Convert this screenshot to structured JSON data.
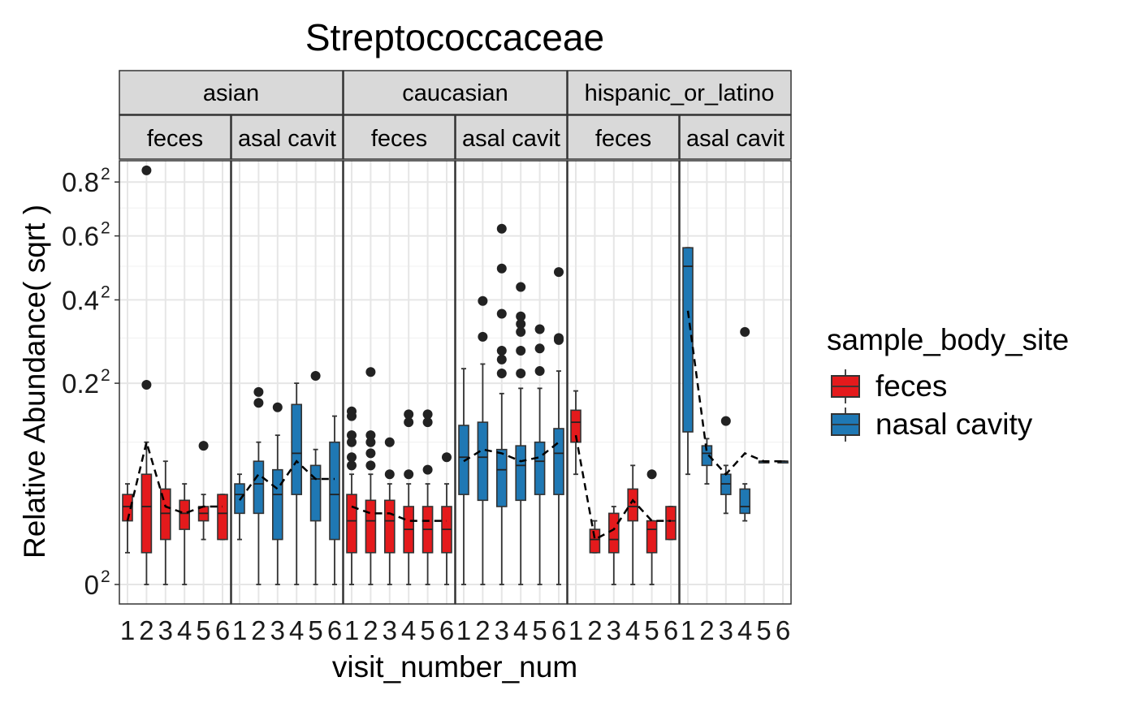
{
  "chart_data": {
    "type": "boxplot",
    "title": "Streptococcaceae",
    "xlabel": "visit_number_num",
    "ylabel": "Relative Abundance( sqrt )",
    "y_scale": "sqrt",
    "ylim": [
      0,
      0.88
    ],
    "y_ticks": [
      {
        "value": 0,
        "base": "0",
        "exp": "2"
      },
      {
        "value": 0.2,
        "base": "0.2",
        "exp": "2"
      },
      {
        "value": 0.4,
        "base": "0.4",
        "exp": "2"
      },
      {
        "value": 0.6,
        "base": "0.6",
        "exp": "2"
      },
      {
        "value": 0.8,
        "base": "0.8",
        "exp": "2"
      }
    ],
    "x_ticks": [
      "1",
      "2",
      "3",
      "4",
      "5",
      "6"
    ],
    "facet_rows_top": [
      "asian",
      "caucasian",
      "hispanic_or_latino"
    ],
    "facet_rows_sub": [
      "feces",
      "asal cavit"
    ],
    "legend": {
      "title": "sample_body_site",
      "position": "right",
      "entries": [
        {
          "label": "feces",
          "color": "#e41a1c"
        },
        {
          "label": "nasal cavity",
          "color": "#1f78b4"
        }
      ]
    },
    "grid": true,
    "panels": [
      {
        "ethnicity": "asian",
        "site": "feces",
        "color": "#e41a1c",
        "boxes": [
          {
            "x": 1,
            "q1": 0.02,
            "median": 0.03,
            "q3": 0.04,
            "lo": 0.005,
            "hi": 0.05,
            "outliers": []
          },
          {
            "x": 2,
            "q1": 0.005,
            "median": 0.03,
            "q3": 0.06,
            "lo": 0.0,
            "hi": 0.1,
            "outliers": [
              0.197,
              0.847
            ]
          },
          {
            "x": 3,
            "q1": 0.01,
            "median": 0.025,
            "q3": 0.045,
            "lo": 0.0,
            "hi": 0.075,
            "outliers": []
          },
          {
            "x": 4,
            "q1": 0.015,
            "median": 0.025,
            "q3": 0.035,
            "lo": 0.0,
            "hi": 0.05,
            "outliers": []
          },
          {
            "x": 5,
            "q1": 0.02,
            "median": 0.025,
            "q3": 0.03,
            "lo": 0.01,
            "hi": 0.04,
            "outliers": [
              0.095
            ]
          },
          {
            "x": 6,
            "q1": 0.01,
            "median": 0.025,
            "q3": 0.04,
            "lo": 0.01,
            "hi": 0.04,
            "outliers": []
          }
        ],
        "trend": [
          0.02,
          0.1,
          0.03,
          0.025,
          0.03,
          0.03
        ]
      },
      {
        "ethnicity": "asian",
        "site": "nasal cavity",
        "color": "#1f78b4",
        "boxes": [
          {
            "x": 1,
            "q1": 0.025,
            "median": 0.04,
            "q3": 0.05,
            "lo": 0.01,
            "hi": 0.06,
            "outliers": []
          },
          {
            "x": 2,
            "q1": 0.025,
            "median": 0.05,
            "q3": 0.075,
            "lo": 0.0,
            "hi": 0.1,
            "outliers": [
              0.163,
              0.183
            ]
          },
          {
            "x": 3,
            "q1": 0.01,
            "median": 0.04,
            "q3": 0.065,
            "lo": 0.0,
            "hi": 0.11,
            "outliers": [
              0.155
            ]
          },
          {
            "x": 4,
            "q1": 0.04,
            "median": 0.085,
            "q3": 0.16,
            "lo": 0.0,
            "hi": 0.2,
            "outliers": []
          },
          {
            "x": 5,
            "q1": 0.02,
            "median": 0.055,
            "q3": 0.07,
            "lo": 0.0,
            "hi": 0.09,
            "outliers": [
              0.215
            ]
          },
          {
            "x": 6,
            "q1": 0.01,
            "median": 0.04,
            "q3": 0.1,
            "lo": 0.0,
            "hi": 0.14,
            "outliers": []
          }
        ],
        "trend": [
          0.035,
          0.06,
          0.045,
          0.075,
          0.055,
          0.055
        ]
      },
      {
        "ethnicity": "caucasian",
        "site": "feces",
        "color": "#e41a1c",
        "boxes": [
          {
            "x": 1,
            "q1": 0.005,
            "median": 0.02,
            "q3": 0.04,
            "lo": 0.0,
            "hi": 0.06,
            "outliers": [
              0.07,
              0.08,
              0.1,
              0.11,
              0.14,
              0.148
            ]
          },
          {
            "x": 2,
            "q1": 0.005,
            "median": 0.02,
            "q3": 0.035,
            "lo": 0.0,
            "hi": 0.06,
            "outliers": [
              0.07,
              0.085,
              0.1,
              0.11,
              0.223
            ]
          },
          {
            "x": 3,
            "q1": 0.005,
            "median": 0.02,
            "q3": 0.035,
            "lo": 0.0,
            "hi": 0.05,
            "outliers": [
              0.06,
              0.1
            ]
          },
          {
            "x": 4,
            "q1": 0.005,
            "median": 0.015,
            "q3": 0.03,
            "lo": 0.0,
            "hi": 0.05,
            "outliers": [
              0.06,
              0.13,
              0.143
            ]
          },
          {
            "x": 5,
            "q1": 0.005,
            "median": 0.015,
            "q3": 0.03,
            "lo": 0.0,
            "hi": 0.05,
            "outliers": [
              0.065,
              0.13,
              0.143
            ]
          },
          {
            "x": 6,
            "q1": 0.005,
            "median": 0.015,
            "q3": 0.03,
            "lo": 0.0,
            "hi": 0.05,
            "outliers": [
              0.08
            ]
          }
        ],
        "trend": [
          0.03,
          0.025,
          0.025,
          0.02,
          0.02,
          0.02
        ]
      },
      {
        "ethnicity": "caucasian",
        "site": "nasal cavity",
        "color": "#1f78b4",
        "boxes": [
          {
            "x": 1,
            "q1": 0.04,
            "median": 0.08,
            "q3": 0.125,
            "lo": 0.0,
            "hi": 0.23,
            "outliers": []
          },
          {
            "x": 2,
            "q1": 0.035,
            "median": 0.08,
            "q3": 0.13,
            "lo": 0.0,
            "hi": 0.24,
            "outliers": [
              0.303,
              0.397
            ]
          },
          {
            "x": 3,
            "q1": 0.03,
            "median": 0.065,
            "q3": 0.09,
            "lo": 0.0,
            "hi": 0.18,
            "outliers": [
              0.22,
              0.25,
              0.27,
              0.362,
              0.493,
              0.625
            ]
          },
          {
            "x": 4,
            "q1": 0.035,
            "median": 0.07,
            "q3": 0.095,
            "lo": 0.0,
            "hi": 0.19,
            "outliers": [
              0.22,
              0.27,
              0.315,
              0.335,
              0.355,
              0.437
            ]
          },
          {
            "x": 5,
            "q1": 0.04,
            "median": 0.075,
            "q3": 0.1,
            "lo": 0.0,
            "hi": 0.19,
            "outliers": [
              0.225,
              0.275,
              0.322
            ]
          },
          {
            "x": 6,
            "q1": 0.04,
            "median": 0.085,
            "q3": 0.12,
            "lo": 0.0,
            "hi": 0.225,
            "outliers": [
              0.295,
              0.3,
              0.482
            ]
          }
        ],
        "trend": [
          0.075,
          0.09,
          0.085,
          0.075,
          0.08,
          0.1
        ]
      },
      {
        "ethnicity": "hispanic_or_latino",
        "site": "feces",
        "color": "#e41a1c",
        "boxes": [
          {
            "x": 1,
            "q1": 0.1,
            "median": 0.13,
            "q3": 0.15,
            "lo": 0.06,
            "hi": 0.185,
            "outliers": []
          },
          {
            "x": 2,
            "q1": 0.005,
            "median": 0.01,
            "q3": 0.015,
            "lo": 0.005,
            "hi": 0.02,
            "outliers": []
          },
          {
            "x": 3,
            "q1": 0.005,
            "median": 0.01,
            "q3": 0.025,
            "lo": 0.0,
            "hi": 0.03,
            "outliers": []
          },
          {
            "x": 4,
            "q1": 0.02,
            "median": 0.03,
            "q3": 0.045,
            "lo": 0.0,
            "hi": 0.07,
            "outliers": []
          },
          {
            "x": 5,
            "q1": 0.005,
            "median": 0.015,
            "q3": 0.02,
            "lo": 0.0,
            "hi": 0.02,
            "outliers": [
              0.06
            ]
          },
          {
            "x": 6,
            "q1": 0.01,
            "median": 0.02,
            "q3": 0.03,
            "lo": 0.01,
            "hi": 0.03,
            "outliers": []
          }
        ],
        "trend": [
          0.11,
          0.01,
          0.015,
          0.035,
          0.02,
          0.02
        ]
      },
      {
        "ethnicity": "hispanic_or_latino",
        "site": "nasal cavity",
        "color": "#1f78b4",
        "boxes": [
          {
            "x": 1,
            "q1": 0.115,
            "median": 0.5,
            "q3": 0.56,
            "lo": 0.06,
            "hi": 0.56,
            "outliers": []
          },
          {
            "x": 2,
            "q1": 0.07,
            "median": 0.085,
            "q3": 0.095,
            "lo": 0.05,
            "hi": 0.105,
            "outliers": []
          },
          {
            "x": 3,
            "q1": 0.04,
            "median": 0.05,
            "q3": 0.06,
            "lo": 0.025,
            "hi": 0.07,
            "outliers": [
              0.132
            ]
          },
          {
            "x": 4,
            "q1": 0.025,
            "median": 0.03,
            "q3": 0.045,
            "lo": 0.02,
            "hi": 0.05,
            "outliers": [
              0.315
            ]
          },
          {
            "x": 5,
            "q1": 0.075,
            "median": 0.075,
            "q3": 0.075,
            "lo": 0.075,
            "hi": 0.075,
            "outliers": []
          },
          {
            "x": 6,
            "q1": 0.075,
            "median": 0.075,
            "q3": 0.075,
            "lo": 0.075,
            "hi": 0.075,
            "outliers": []
          }
        ],
        "trend": [
          0.37,
          0.085,
          0.06,
          0.085,
          0.075,
          0.075
        ]
      }
    ]
  }
}
